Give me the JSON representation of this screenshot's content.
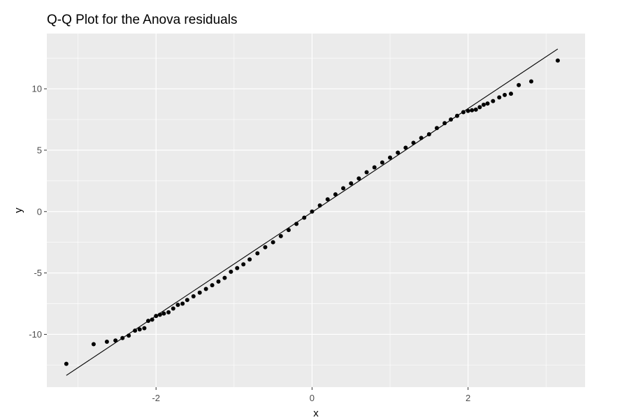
{
  "chart_data": {
    "type": "scatter",
    "title": "Q-Q Plot for the Anova residuals",
    "xlabel": "x",
    "ylabel": "y",
    "xlim": [
      -3.4,
      3.5
    ],
    "ylim": [
      -14.3,
      14.5
    ],
    "x_ticks": [
      -2,
      0,
      2
    ],
    "y_ticks": [
      -10,
      -5,
      0,
      5,
      10
    ],
    "x_tick_labels": [
      "-2",
      "0",
      "2"
    ],
    "y_tick_labels": [
      "-10",
      "-5",
      "0",
      "5",
      "10"
    ],
    "grid": true,
    "panel_background": "#ebebeb",
    "grid_color": "#ffffff",
    "point_color": "#000000",
    "reference_line": {
      "intercept": -0.05,
      "slope": 4.22,
      "x_range": [
        -3.15,
        3.15
      ]
    },
    "series": [
      {
        "points": [
          [
            -3.15,
            -12.4
          ],
          [
            -2.8,
            -10.8
          ],
          [
            -2.63,
            -10.6
          ],
          [
            -2.52,
            -10.5
          ],
          [
            -2.43,
            -10.3
          ],
          [
            -2.35,
            -10.1
          ],
          [
            -2.27,
            -9.7
          ],
          [
            -2.21,
            -9.6
          ],
          [
            -2.15,
            -9.5
          ],
          [
            -2.1,
            -8.9
          ],
          [
            -2.05,
            -8.8
          ],
          [
            -2.0,
            -8.5
          ],
          [
            -1.95,
            -8.4
          ],
          [
            -1.9,
            -8.3
          ],
          [
            -1.84,
            -8.2
          ],
          [
            -1.78,
            -7.9
          ],
          [
            -1.72,
            -7.6
          ],
          [
            -1.66,
            -7.5
          ],
          [
            -1.6,
            -7.2
          ],
          [
            -1.52,
            -6.9
          ],
          [
            -1.44,
            -6.6
          ],
          [
            -1.36,
            -6.3
          ],
          [
            -1.28,
            -6.0
          ],
          [
            -1.2,
            -5.7
          ],
          [
            -1.12,
            -5.4
          ],
          [
            -1.04,
            -4.9
          ],
          [
            -0.96,
            -4.6
          ],
          [
            -0.88,
            -4.3
          ],
          [
            -0.8,
            -3.9
          ],
          [
            -0.7,
            -3.4
          ],
          [
            -0.6,
            -2.9
          ],
          [
            -0.5,
            -2.5
          ],
          [
            -0.4,
            -2.0
          ],
          [
            -0.3,
            -1.5
          ],
          [
            -0.2,
            -1.0
          ],
          [
            -0.1,
            -0.5
          ],
          [
            0.0,
            0.0
          ],
          [
            0.1,
            0.5
          ],
          [
            0.2,
            1.0
          ],
          [
            0.3,
            1.4
          ],
          [
            0.4,
            1.9
          ],
          [
            0.5,
            2.3
          ],
          [
            0.6,
            2.7
          ],
          [
            0.7,
            3.2
          ],
          [
            0.8,
            3.6
          ],
          [
            0.9,
            4.0
          ],
          [
            1.0,
            4.4
          ],
          [
            1.1,
            4.8
          ],
          [
            1.2,
            5.2
          ],
          [
            1.3,
            5.6
          ],
          [
            1.4,
            6.0
          ],
          [
            1.5,
            6.3
          ],
          [
            1.6,
            6.8
          ],
          [
            1.7,
            7.2
          ],
          [
            1.78,
            7.5
          ],
          [
            1.86,
            7.8
          ],
          [
            1.94,
            8.1
          ],
          [
            2.0,
            8.2
          ],
          [
            2.05,
            8.25
          ],
          [
            2.1,
            8.3
          ],
          [
            2.15,
            8.5
          ],
          [
            2.2,
            8.7
          ],
          [
            2.25,
            8.8
          ],
          [
            2.32,
            9.0
          ],
          [
            2.4,
            9.3
          ],
          [
            2.47,
            9.5
          ],
          [
            2.55,
            9.6
          ],
          [
            2.65,
            10.3
          ],
          [
            2.81,
            10.6
          ],
          [
            3.15,
            12.3
          ]
        ]
      }
    ]
  }
}
